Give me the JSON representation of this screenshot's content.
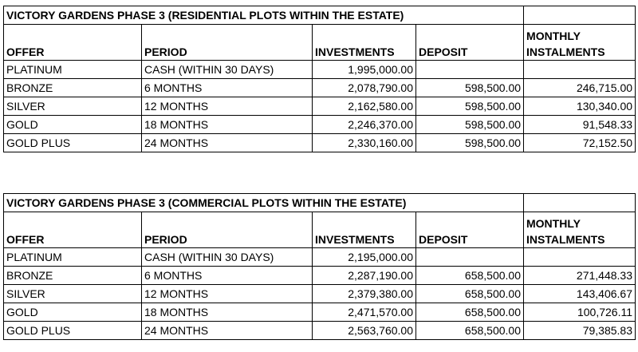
{
  "headers": {
    "offer": "OFFER",
    "period": "PERIOD",
    "investments": "INVESTMENTS",
    "deposit": "DEPOSIT",
    "monthly_line1": "MONTHLY",
    "monthly_line2": "INSTALMENTS"
  },
  "residential": {
    "title": "VICTORY GARDENS PHASE 3 (RESIDENTIAL PLOTS WITHIN THE ESTATE)",
    "rows": [
      {
        "offer": "PLATINUM",
        "period": "CASH (WITHIN 30 DAYS)",
        "investments": "1,995,000.00",
        "deposit": "",
        "monthly": ""
      },
      {
        "offer": "BRONZE",
        "period": "6 MONTHS",
        "investments": "2,078,790.00",
        "deposit": "598,500.00",
        "monthly": "246,715.00"
      },
      {
        "offer": "SILVER",
        "period": "12 MONTHS",
        "investments": "2,162,580.00",
        "deposit": "598,500.00",
        "monthly": "130,340.00"
      },
      {
        "offer": "GOLD",
        "period": "18 MONTHS",
        "investments": "2,246,370.00",
        "deposit": "598,500.00",
        "monthly": "91,548.33"
      },
      {
        "offer": "GOLD PLUS",
        "period": "24 MONTHS",
        "investments": "2,330,160.00",
        "deposit": "598,500.00",
        "monthly": "72,152.50"
      }
    ]
  },
  "commercial": {
    "title": "VICTORY GARDENS PHASE 3 (COMMERCIAL PLOTS WITHIN THE ESTATE)",
    "rows": [
      {
        "offer": "PLATINUM",
        "period": "CASH (WITHIN 30 DAYS)",
        "investments": "2,195,000.00",
        "deposit": "",
        "monthly": ""
      },
      {
        "offer": "BRONZE",
        "period": "6 MONTHS",
        "investments": "2,287,190.00",
        "deposit": "658,500.00",
        "monthly": "271,448.33"
      },
      {
        "offer": "SILVER",
        "period": "12 MONTHS",
        "investments": "2,379,380.00",
        "deposit": "658,500.00",
        "monthly": "143,406.67"
      },
      {
        "offer": "GOLD",
        "period": "18 MONTHS",
        "investments": "2,471,570.00",
        "deposit": "658,500.00",
        "monthly": "100,726.11"
      },
      {
        "offer": "GOLD PLUS",
        "period": "24 MONTHS",
        "investments": "2,563,760.00",
        "deposit": "658,500.00",
        "monthly": "79,385.83"
      }
    ]
  }
}
